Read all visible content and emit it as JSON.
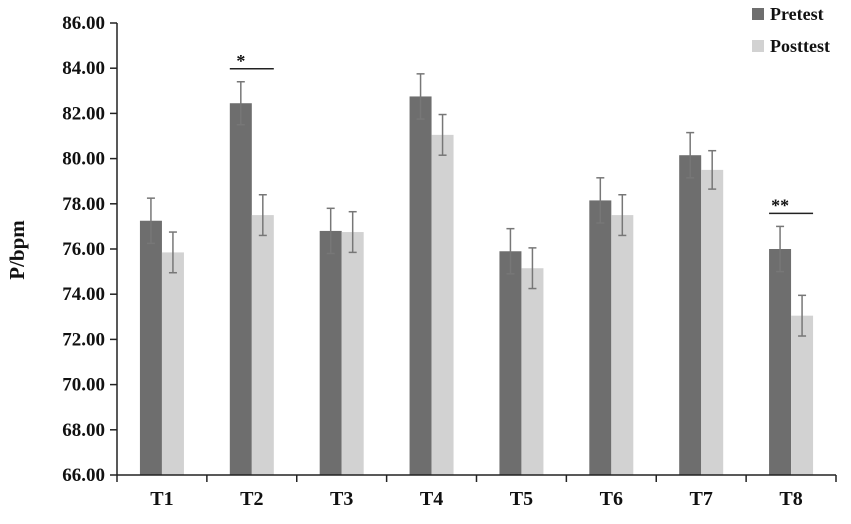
{
  "colors": {
    "pretest": "#6e6e6e",
    "posttest": "#d2d2d2",
    "axis": "#222222",
    "error": "#777777"
  },
  "chart_data": {
    "type": "bar",
    "title": "",
    "xlabel": "",
    "ylabel": "P/bpm",
    "ylim": [
      66,
      86
    ],
    "yticks": [
      "66.00",
      "68.00",
      "70.00",
      "72.00",
      "74.00",
      "76.00",
      "78.00",
      "80.00",
      "82.00",
      "84.00",
      "86.00"
    ],
    "grid": false,
    "legend_position": "top-right",
    "categories": [
      "T1",
      "T2",
      "T3",
      "T4",
      "T5",
      "T6",
      "T7",
      "T8"
    ],
    "series": [
      {
        "name": "Pretest",
        "values": [
          77.25,
          82.45,
          76.8,
          82.75,
          75.9,
          78.15,
          80.15,
          76.0
        ],
        "errors": [
          1.0,
          0.95,
          1.0,
          1.0,
          1.0,
          1.0,
          1.0,
          1.0
        ]
      },
      {
        "name": "Posttest",
        "values": [
          75.85,
          77.5,
          76.75,
          81.05,
          75.15,
          77.5,
          79.5,
          73.05
        ],
        "errors": [
          0.9,
          0.9,
          0.9,
          0.9,
          0.9,
          0.9,
          0.85,
          0.9
        ]
      }
    ],
    "annotations": [
      {
        "category": "T2",
        "text": "*"
      },
      {
        "category": "T8",
        "text": "**"
      }
    ]
  }
}
